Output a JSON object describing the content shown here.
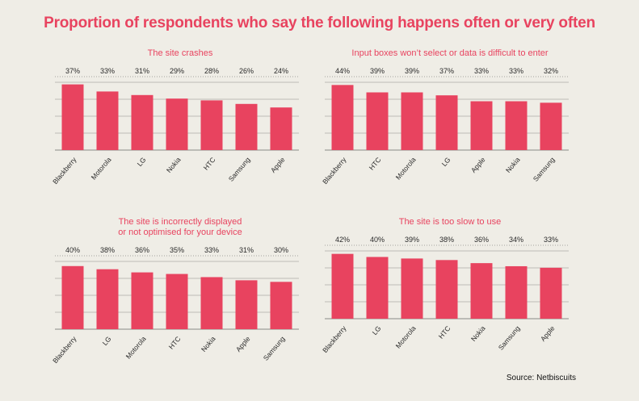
{
  "title": "Proportion of respondents who say the following happens often or very often",
  "source": "Source: Netbiscuits",
  "colors": {
    "bar": "#e8435f",
    "grid": "#8a8a86",
    "title": "#e8435f",
    "text": "#2a2a2a"
  },
  "chart_data": [
    {
      "type": "bar",
      "title": "The site crashes",
      "categories": [
        "Blackberry",
        "Motorola",
        "LG",
        "Nokia",
        "HTC",
        "Samsung",
        "Apple"
      ],
      "values": [
        37,
        33,
        31,
        29,
        28,
        26,
        24
      ],
      "value_labels": [
        "37%",
        "33%",
        "31%",
        "29%",
        "28%",
        "26%",
        "24%"
      ],
      "ylim": [
        0,
        40
      ]
    },
    {
      "type": "bar",
      "title": "Input boxes won’t select or data is difficult to enter",
      "categories": [
        "Blackberry",
        "HTC",
        "Motorola",
        "LG",
        "Apple",
        "Nokia",
        "Samsung"
      ],
      "values": [
        44,
        39,
        39,
        37,
        33,
        33,
        32
      ],
      "value_labels": [
        "44%",
        "39%",
        "39%",
        "37%",
        "33%",
        "33%",
        "32%"
      ],
      "ylim": [
        0,
        48
      ]
    },
    {
      "type": "bar",
      "title": "The site is incorrectly displayed or not optimised for your device",
      "title_lines": [
        "The site is incorrectly displayed",
        "or not optimised for your device"
      ],
      "categories": [
        "Blackberry",
        "LG",
        "Motorola",
        "HTC",
        "Nokia",
        "Apple",
        "Samsung"
      ],
      "values": [
        40,
        38,
        36,
        35,
        33,
        31,
        30
      ],
      "value_labels": [
        "40%",
        "38%",
        "36%",
        "35%",
        "33%",
        "31%",
        "30%"
      ],
      "ylim": [
        0,
        45
      ]
    },
    {
      "type": "bar",
      "title": "The site is too slow to use",
      "categories": [
        "Blackberry",
        "LG",
        "Motorola",
        "HTC",
        "Nokia",
        "Samsung",
        "Apple"
      ],
      "values": [
        42,
        40,
        39,
        38,
        36,
        34,
        33
      ],
      "value_labels": [
        "42%",
        "40%",
        "39%",
        "38%",
        "36%",
        "34%",
        "33%"
      ],
      "ylim": [
        0,
        46
      ]
    }
  ]
}
